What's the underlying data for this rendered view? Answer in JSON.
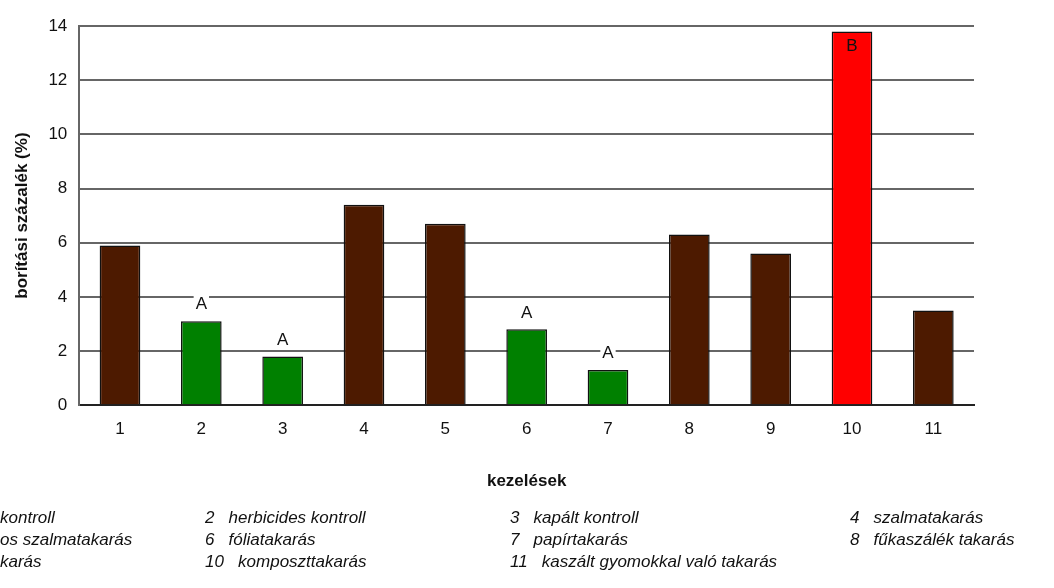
{
  "chart_data": {
    "type": "bar",
    "ylabel": "borítási százalék (%)",
    "xlabel": "kezelések",
    "categories": [
      "1",
      "2",
      "3",
      "4",
      "5",
      "6",
      "7",
      "8",
      "9",
      "10",
      "11"
    ],
    "values": [
      5.9,
      3.1,
      1.8,
      7.4,
      6.7,
      2.8,
      1.3,
      6.3,
      5.6,
      13.8,
      3.5
    ],
    "colors": [
      "#4d1a00",
      "#008000",
      "#008000",
      "#4d1a00",
      "#4d1a00",
      "#008000",
      "#008000",
      "#4d1a00",
      "#4d1a00",
      "#ff0000",
      "#4d1a00"
    ],
    "value_labels": [
      null,
      "A",
      "A",
      null,
      null,
      "A",
      "A",
      null,
      null,
      "B",
      null
    ],
    "ylim": [
      0,
      14
    ],
    "yticks": [
      0,
      2,
      4,
      6,
      8,
      10,
      12,
      14
    ],
    "grid": "y",
    "legend": false,
    "annotations": [
      "kontroll",
      "2   herbicides kontroll",
      "3   kapált kontroll",
      "4   szalmatakarás",
      "os szalmatakarás",
      "6   fóliatakarás",
      "7   papírtakarás",
      "8   fűkaszálék takarás",
      "karás",
      "10   komposzttakarás",
      "11   kaszált gyomokkal való takarás"
    ]
  }
}
